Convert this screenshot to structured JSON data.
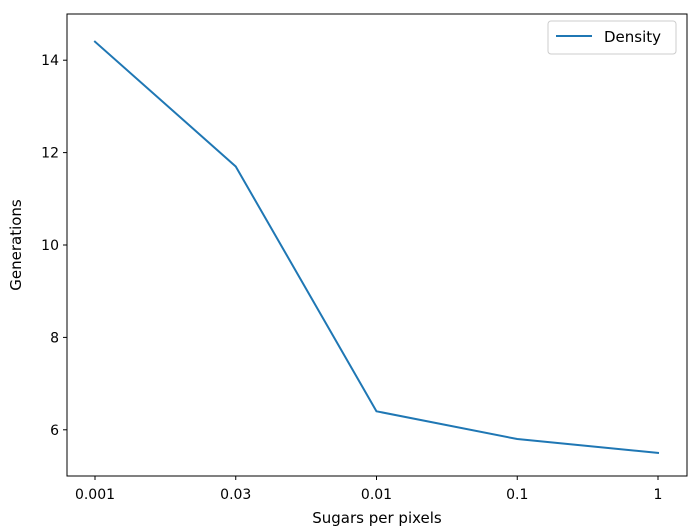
{
  "chart_data": {
    "type": "line",
    "title": "",
    "xlabel": "Sugars per pixels",
    "ylabel": "Generations",
    "categories": [
      "0.001",
      "0.03",
      "0.01",
      "0.1",
      "1"
    ],
    "series": [
      {
        "name": "Density",
        "values": [
          14.4,
          11.7,
          6.4,
          5.8,
          5.5
        ],
        "color": "#1f77b4"
      }
    ],
    "ylim": [
      5.0,
      15.0
    ],
    "yticks": [
      "6",
      "8",
      "10",
      "12",
      "14"
    ],
    "grid": false,
    "legend_position": "top-right"
  }
}
